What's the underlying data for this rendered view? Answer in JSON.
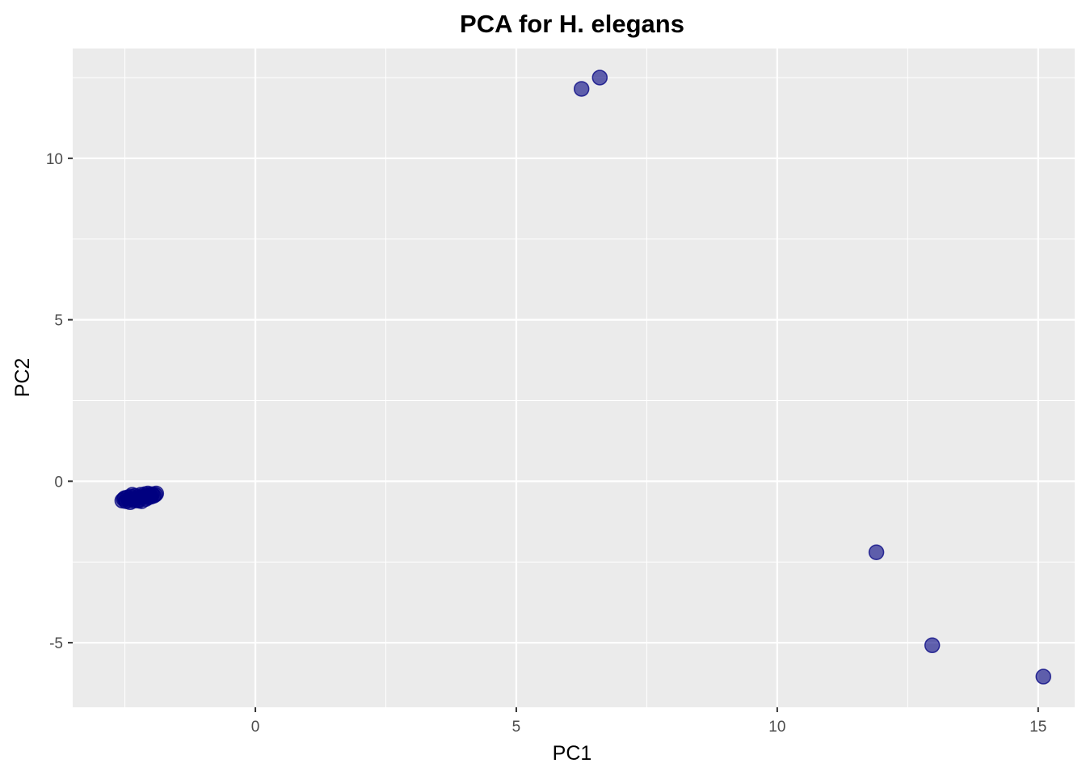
{
  "chart_data": {
    "type": "scatter",
    "title": "PCA for H. elegans",
    "xlabel": "PC1",
    "ylabel": "PC2",
    "xlim": [
      -3.5,
      15.7
    ],
    "ylim": [
      -7.0,
      13.4
    ],
    "x_ticks": [
      0,
      5,
      10,
      15
    ],
    "x_tick_labels": [
      "0",
      "5",
      "10",
      "15"
    ],
    "y_ticks": [
      -5,
      0,
      5,
      10
    ],
    "y_tick_labels": [
      "-5",
      "0",
      "5",
      "10"
    ],
    "grid": true,
    "legend": "none",
    "colors": {
      "panel": "#ebebeb",
      "grid": "#ffffff",
      "point_fill": "#000080",
      "point_opacity": 0.6,
      "axis_text": "#4d4d4d",
      "tick": "#333333"
    },
    "points": [
      {
        "x": -2.55,
        "y": -0.6
      },
      {
        "x": -2.52,
        "y": -0.55
      },
      {
        "x": -2.48,
        "y": -0.62
      },
      {
        "x": -2.45,
        "y": -0.5
      },
      {
        "x": -2.42,
        "y": -0.58
      },
      {
        "x": -2.4,
        "y": -0.65
      },
      {
        "x": -2.38,
        "y": -0.48
      },
      {
        "x": -2.35,
        "y": -0.55
      },
      {
        "x": -2.32,
        "y": -0.6
      },
      {
        "x": -2.3,
        "y": -0.45
      },
      {
        "x": -2.28,
        "y": -0.52
      },
      {
        "x": -2.25,
        "y": -0.58
      },
      {
        "x": -2.22,
        "y": -0.5
      },
      {
        "x": -2.2,
        "y": -0.42
      },
      {
        "x": -2.18,
        "y": -0.62
      },
      {
        "x": -2.15,
        "y": -0.48
      },
      {
        "x": -2.12,
        "y": -0.4
      },
      {
        "x": -2.1,
        "y": -0.55
      },
      {
        "x": -2.08,
        "y": -0.45
      },
      {
        "x": -2.05,
        "y": -0.5
      },
      {
        "x": -2.02,
        "y": -0.42
      },
      {
        "x": -2.0,
        "y": -0.48
      },
      {
        "x": -1.98,
        "y": -0.4
      },
      {
        "x": -1.95,
        "y": -0.45
      },
      {
        "x": -1.92,
        "y": -0.42
      },
      {
        "x": -1.9,
        "y": -0.38
      },
      {
        "x": -2.5,
        "y": -0.52
      },
      {
        "x": -2.36,
        "y": -0.42
      },
      {
        "x": -2.24,
        "y": -0.6
      },
      {
        "x": -2.06,
        "y": -0.38
      },
      {
        "x": 6.25,
        "y": 12.15
      },
      {
        "x": 6.6,
        "y": 12.5
      },
      {
        "x": 11.9,
        "y": -2.2
      },
      {
        "x": 12.97,
        "y": -5.08
      },
      {
        "x": 15.1,
        "y": -6.05
      }
    ]
  }
}
